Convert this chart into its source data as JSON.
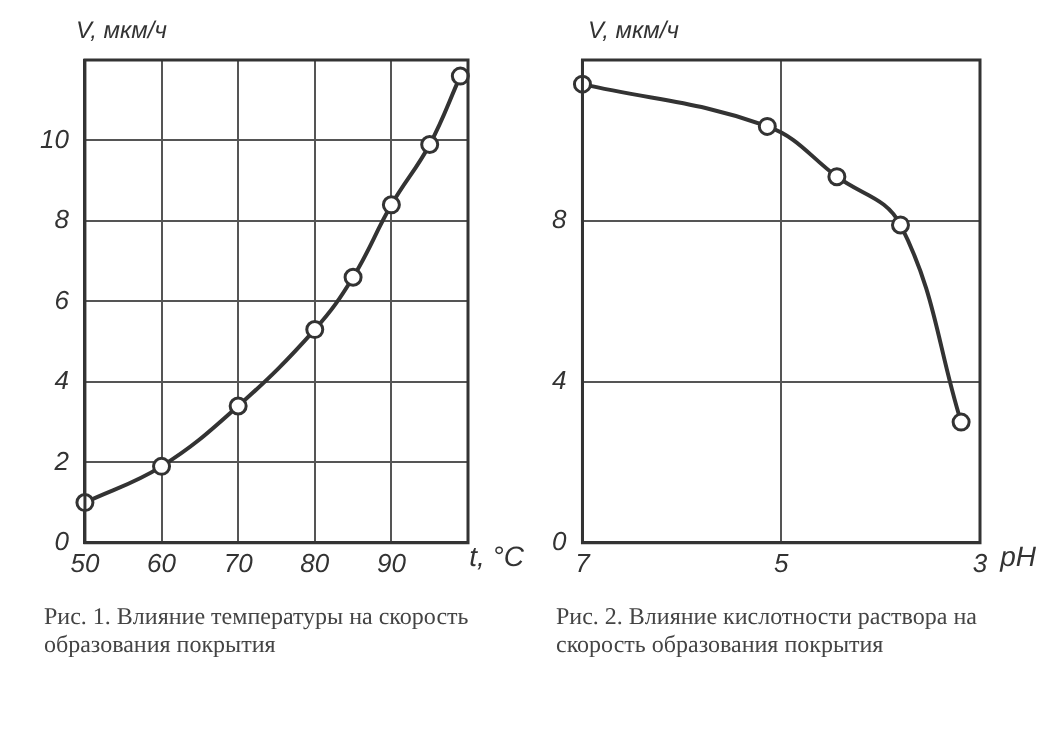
{
  "chart_data": [
    {
      "type": "line",
      "title": "Рис. 1. Влияние температуры на скорость образования покрытия",
      "xlabel": "t, °C",
      "ylabel": "V, мкм/ч",
      "x": [
        50,
        60,
        70,
        80,
        85,
        90,
        95,
        99
      ],
      "series": [
        {
          "color": "#333333",
          "values": [
            1.0,
            1.9,
            3.4,
            5.3,
            6.6,
            8.4,
            9.9,
            11.6
          ]
        }
      ],
      "xlim": [
        50,
        100
      ],
      "xticks": [
        50,
        60,
        70,
        80,
        90,
        {
          "value": 100,
          "label": null
        }
      ],
      "ylim": [
        0,
        12
      ],
      "yticks": [
        0,
        2,
        4,
        6,
        8,
        10,
        {
          "value": 12,
          "label": null
        }
      ],
      "grid": true,
      "marker": "circle",
      "legend": false
    },
    {
      "type": "line",
      "title": "Рис. 2. Влияние кислотности раствора на скорость образования покрытия",
      "xlabel": "pH",
      "ylabel": "V, мкм/ч",
      "x": [
        7,
        5.14,
        4.44,
        3.8,
        3.19
      ],
      "series": [
        {
          "color": "#333333",
          "values": [
            11.4,
            10.35,
            9.1,
            7.9,
            3.0
          ]
        }
      ],
      "xlim": [
        7,
        3
      ],
      "xticks": [
        7,
        5,
        3
      ],
      "ylim": [
        0,
        12
      ],
      "yticks": [
        0,
        4,
        8,
        {
          "value": 12,
          "label": null
        }
      ],
      "grid": true,
      "marker": "circle",
      "legend": false
    }
  ]
}
